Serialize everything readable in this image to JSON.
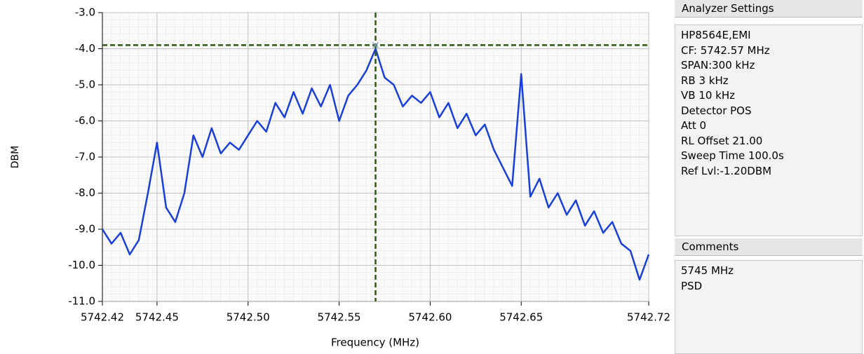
{
  "chart_data": {
    "type": "line",
    "xlabel": "Frequency (MHz)",
    "ylabel": "DBM",
    "x": [
      5742.42,
      5742.425,
      5742.43,
      5742.435,
      5742.44,
      5742.445,
      5742.45,
      5742.455,
      5742.46,
      5742.465,
      5742.47,
      5742.475,
      5742.48,
      5742.485,
      5742.49,
      5742.495,
      5742.5,
      5742.505,
      5742.51,
      5742.515,
      5742.52,
      5742.525,
      5742.53,
      5742.535,
      5742.54,
      5742.545,
      5742.55,
      5742.555,
      5742.56,
      5742.565,
      5742.57,
      5742.575,
      5742.58,
      5742.585,
      5742.59,
      5742.595,
      5742.6,
      5742.605,
      5742.61,
      5742.615,
      5742.62,
      5742.625,
      5742.63,
      5742.635,
      5742.64,
      5742.645,
      5742.65,
      5742.655,
      5742.66,
      5742.665,
      5742.67,
      5742.675,
      5742.68,
      5742.685,
      5742.69,
      5742.695,
      5742.7,
      5742.705,
      5742.71,
      5742.715,
      5742.72
    ],
    "values": [
      -9.0,
      -9.4,
      -9.1,
      -9.7,
      -9.3,
      -8.0,
      -6.6,
      -8.4,
      -8.8,
      -8.0,
      -6.4,
      -7.0,
      -6.2,
      -6.9,
      -6.6,
      -6.8,
      -6.4,
      -6.0,
      -6.3,
      -5.5,
      -5.9,
      -5.2,
      -5.8,
      -5.1,
      -5.6,
      -5.0,
      -6.0,
      -5.3,
      -5.0,
      -4.6,
      -4.0,
      -4.8,
      -5.0,
      -5.6,
      -5.3,
      -5.5,
      -5.2,
      -5.9,
      -5.5,
      -6.2,
      -5.8,
      -6.4,
      -6.1,
      -6.8,
      -7.3,
      -7.8,
      -4.7,
      -8.1,
      -7.6,
      -8.4,
      -8.0,
      -8.6,
      -8.2,
      -8.9,
      -8.5,
      -9.1,
      -8.8,
      -9.4,
      -9.6,
      -10.4,
      -9.7
    ],
    "color": "#1a3fd6",
    "cursor": {
      "x": 5742.57,
      "y": -3.9,
      "color": "#2d5a10"
    },
    "xlim": [
      5742.42,
      5742.72
    ],
    "xticks": [
      5742.42,
      5742.45,
      {
        "value": 5742.5,
        "label": "5742.50"
      },
      5742.55,
      {
        "value": 5742.6,
        "label": "5742.60"
      },
      5742.65,
      5742.72
    ],
    "ylim": [
      -11,
      -3
    ],
    "yticks": [
      {
        "value": -3,
        "label": "-3.0"
      },
      {
        "value": -4,
        "label": "-4.0"
      },
      {
        "value": -5,
        "label": "-5.0"
      },
      {
        "value": -6,
        "label": "-6.0"
      },
      {
        "value": -7,
        "label": "-7.0"
      },
      {
        "value": -8,
        "label": "-8.0"
      },
      {
        "value": -9,
        "label": "-9.0"
      },
      {
        "value": -10,
        "label": "-10.0"
      },
      {
        "value": -11,
        "label": "-11.0"
      }
    ],
    "grid": true
  },
  "settings_panel": {
    "title": "Analyzer Settings",
    "lines": [
      "HP8564E,EMI",
      "CF: 5742.57 MHz",
      "SPAN:300 kHz",
      "RB 3 kHz",
      "VB 10 kHz",
      "Detector POS",
      "Att 0",
      "RL Offset 21.00",
      "Sweep Time 100.0s",
      "Ref Lvl:-1.20DBM"
    ]
  },
  "comments_panel": {
    "title": "Comments",
    "lines": [
      "5745 MHz",
      "PSD"
    ]
  }
}
